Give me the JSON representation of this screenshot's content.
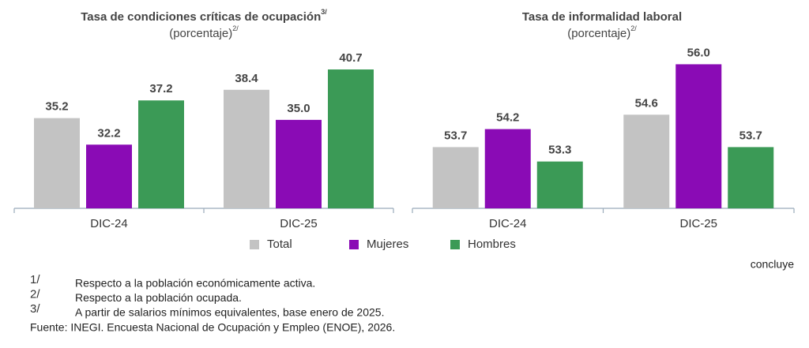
{
  "chart_data": [
    {
      "type": "bar",
      "title": "Tasa de condiciones críticas de ocupación",
      "title_note": "3/",
      "subtitle": "(porcentaje)",
      "subtitle_note": "2/",
      "categories": [
        "DIC-24",
        "DIC-25"
      ],
      "ylim": [
        25,
        43.2
      ],
      "series": [
        {
          "name": "Total",
          "color": "#c3c3c3",
          "values": [
            35.2,
            38.4
          ],
          "value_labels": [
            "35.2",
            "38.4"
          ]
        },
        {
          "name": "Mujeres",
          "color": "#8a0bb5",
          "values": [
            32.2,
            35.0
          ],
          "value_labels": [
            "32.2",
            "35.0"
          ]
        },
        {
          "name": "Hombres",
          "color": "#3b9a56",
          "values": [
            37.2,
            40.7
          ],
          "value_labels": [
            "37.2",
            "40.7"
          ]
        }
      ]
    },
    {
      "type": "bar",
      "title": "Tasa de informalidad laboral",
      "subtitle": "(porcentaje)",
      "subtitle_note": "2/",
      "categories": [
        "DIC-24",
        "DIC-25"
      ],
      "ylim": [
        52,
        56.47
      ],
      "series": [
        {
          "color": "#c3c3c3",
          "values": [
            53.7,
            54.6
          ],
          "value_labels": [
            "53.7",
            "54.6"
          ]
        },
        {
          "color": "#8a0bb5",
          "values": [
            54.2,
            56.0
          ],
          "value_labels": [
            "54.2",
            "56.0"
          ]
        },
        {
          "color": "#3b9a56",
          "values": [
            53.3,
            53.7
          ],
          "value_labels": [
            "53.3",
            "53.7"
          ]
        }
      ]
    }
  ],
  "status": "concluye",
  "footnotes": [
    {
      "mark": "1/",
      "text": "Respecto a la población económicamente activa."
    },
    {
      "mark": "2/",
      "text": "Respecto a la población ocupada."
    },
    {
      "mark": "3/",
      "text": "A partir de salarios mínimos equivalentes, base enero de 2025."
    }
  ],
  "source": "Fuente: INEGI. Encuesta Nacional de Ocupación y Empleo (ENOE), 2026."
}
